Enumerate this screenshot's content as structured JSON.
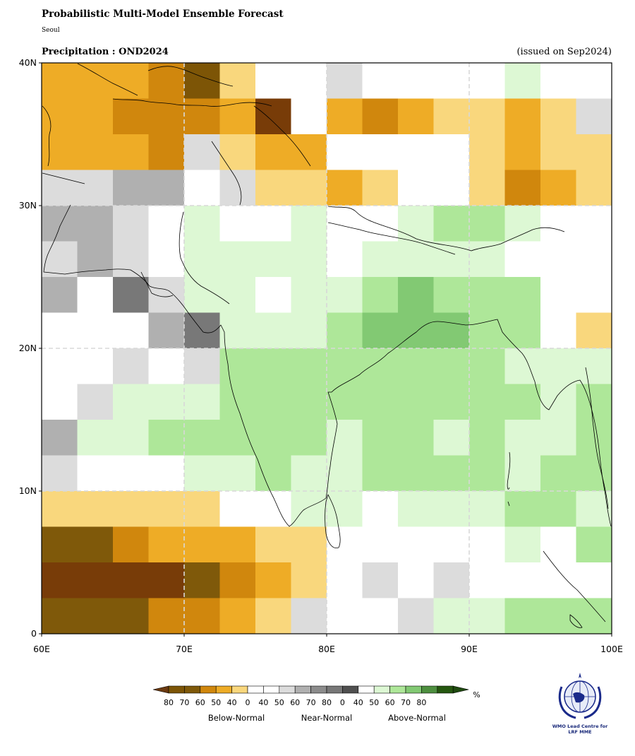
{
  "header": {
    "title": "Probabilistic Multi-Model Ensemble Forecast",
    "subtitle": "Seoul",
    "panel_title": "Precipitation : OND2024",
    "issued": "(issued on Sep2024)"
  },
  "axes": {
    "lat_labels": [
      {
        "value": 40,
        "label": "40N"
      },
      {
        "value": 30,
        "label": "30N"
      },
      {
        "value": 20,
        "label": "20N"
      },
      {
        "value": 10,
        "label": "10N"
      },
      {
        "value": 0,
        "label": "0"
      }
    ],
    "lon_labels": [
      {
        "value": 60,
        "label": "60E"
      },
      {
        "value": 70,
        "label": "70E"
      },
      {
        "value": 80,
        "label": "80E"
      },
      {
        "value": 90,
        "label": "90E"
      },
      {
        "value": 100,
        "label": "100E"
      }
    ],
    "lon_range": [
      60,
      100
    ],
    "lat_range": [
      0,
      40
    ],
    "grid_lines": true
  },
  "map": {
    "region": "South Asia",
    "cell_size_deg": 2.5,
    "legend_codes": "row order north to south (40N to 0); column order west to east (60E to 100E); B=below-normal, N=near-normal, A=above-normal, W=white, digit=probability level",
    "grid": [
      "B50 B50 B50 B60 B80 B40 W W N40 W W W W A40 W W",
      "B50 B50 B60 B60 B60 B50 B90 W B50 B60 B50 B40 B40 B50 B40 N40",
      "B50 B50 B50 B60 N40 B40 B50 B50 W W W W B40 B50 B40 B40",
      "N40 N40 N50 N50 W N40 B40 B40 B50 B40 W W B40 B60 B50 B40",
      "N50 N50 N40 W A40 W W A40 W W A40 A50 A50 A40 W W",
      "N40 N50 N40 W A40 A40 A40 A40 W A40 A40 A40 A40 W W W",
      "N50 W N70 N40 A40 A40 W A40 A40 A50 A60 A50 A50 A50 W W",
      "W W W N50 N70 A40 A40 A40 A50 A60 A60 A60 A50 A50 W B40",
      "W W N40 W N40 A50 A50 A50 A50 A50 A50 A50 A50 A40 A40 A40",
      "W N40 A40 A40 A40 A50 A50 A50 A50 A50 A50 A50 A50 A50 A40 A50",
      "N50 A40 A40 A50 A50 A50 A50 A50 A40 A50 A50 A40 A50 A40 A40 A50",
      "N40 W W W A40 A40 A50 A40 A40 A50 A50 A50 A50 A40 A50 A50",
      "B40 B40 B40 B40 B40 W W A40 A40 W A40 A40 A40 A50 A50 A40",
      "B70 B70 B60 B50 B50 B50 B40 B40 W W W W W A40 W A50",
      "B90 B90 B90 B90 B70 B60 B50 B40 W N40 W N40 W W W W",
      "B70 B70 B70 B60 B60 B50 B40 N40 W W N40 A40 A40 A50 A50 A50"
    ]
  },
  "colors": {
    "B90": "#783c08",
    "B80": "#7d5506",
    "B70": "#7f590a",
    "B60": "#d0870d",
    "B50": "#eeac26",
    "B40": "#f9d77d",
    "W": "#ffffff",
    "N40": "#dcdcdc",
    "N50": "#b0b0b0",
    "N60": "#8c8c8c",
    "N70": "#787878",
    "N80": "#505050",
    "A40": "#ddf8d4",
    "A50": "#aee799",
    "A60": "#82c973",
    "A70": "#4e8f3f",
    "A80": "#255710"
  },
  "colorbar": {
    "unit": "%",
    "segments": [
      {
        "key": "B80",
        "label": "80"
      },
      {
        "key": "B70",
        "label": "70"
      },
      {
        "key": "B60",
        "label": "60"
      },
      {
        "key": "B50",
        "label": "50"
      },
      {
        "key": "B40",
        "label": "40"
      },
      {
        "key": "W",
        "label": "0"
      },
      {
        "key": "W",
        "label": "40"
      },
      {
        "key": "N40",
        "label": "50"
      },
      {
        "key": "N50",
        "label": "60"
      },
      {
        "key": "N60",
        "label": "70"
      },
      {
        "key": "N70",
        "label": "80"
      },
      {
        "key": "N80",
        "label": "0"
      },
      {
        "key": "W",
        "label": "40"
      },
      {
        "key": "A40",
        "label": "50"
      },
      {
        "key": "A50",
        "label": "60"
      },
      {
        "key": "A60",
        "label": "70"
      },
      {
        "key": "A70",
        "label": "80"
      },
      {
        "key": "A80",
        "label": ""
      }
    ],
    "left_arrow_color": "#6b3a10",
    "right_arrow_color": "#1f4a10",
    "categories": [
      "Below-Normal",
      "Near-Normal",
      "Above-Normal"
    ]
  },
  "logo": {
    "caption_line1": "WMO Lead Centre for",
    "caption_line2": "LRF MME"
  }
}
